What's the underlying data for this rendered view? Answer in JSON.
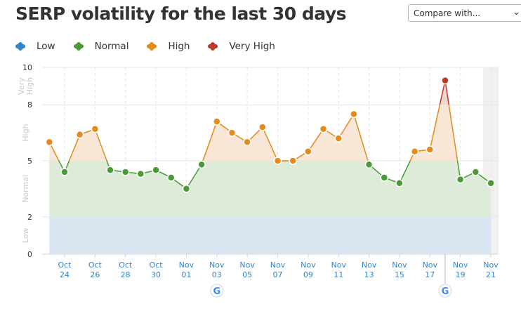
{
  "header": {
    "title": "SERP volatility for the last 30 days",
    "compare_label": "Compare with..."
  },
  "legend": [
    {
      "label": "Low",
      "color": "#2f86d0"
    },
    {
      "label": "Normal",
      "color": "#4a9a35"
    },
    {
      "label": "High",
      "color": "#e38b1b"
    },
    {
      "label": "Very High",
      "color": "#c0392b"
    }
  ],
  "chart_data": {
    "type": "line",
    "title": "SERP volatility for the last 30 days",
    "ylim": [
      0,
      10
    ],
    "yticks": [
      0,
      2,
      5,
      8,
      10
    ],
    "bands": [
      {
        "name": "Low",
        "from": 0,
        "to": 2,
        "fill": "#d9e5f1",
        "line": "#2f86d0"
      },
      {
        "name": "Normal",
        "from": 2,
        "to": 5,
        "fill": "#deebd9",
        "line": "#4a9a35"
      },
      {
        "name": "High",
        "from": 5,
        "to": 8,
        "fill": "#f8e6d6",
        "line": "#e38b1b"
      },
      {
        "name": "Very High",
        "from": 8,
        "to": 10,
        "fill": "#f1d5d1",
        "line": "#c0392b"
      }
    ],
    "band_labels": [
      {
        "label": "Low",
        "center": 1
      },
      {
        "label": "Normal",
        "center": 3.5
      },
      {
        "label": "High",
        "center": 6.5
      },
      {
        "label": "Very High",
        "center": 9
      }
    ],
    "x": [
      "Oct 23",
      "Oct 24",
      "Oct 25",
      "Oct 26",
      "Oct 27",
      "Oct 28",
      "Oct 29",
      "Oct 30",
      "Oct 31",
      "Nov 01",
      "Nov 02",
      "Nov 03",
      "Nov 04",
      "Nov 05",
      "Nov 06",
      "Nov 07",
      "Nov 08",
      "Nov 09",
      "Nov 10",
      "Nov 11",
      "Nov 12",
      "Nov 13",
      "Nov 14",
      "Nov 15",
      "Nov 16",
      "Nov 17",
      "Nov 18",
      "Nov 19",
      "Nov 20",
      "Nov 21"
    ],
    "values": [
      6.0,
      4.4,
      6.4,
      6.7,
      4.5,
      4.4,
      4.3,
      4.5,
      4.1,
      3.5,
      4.8,
      7.1,
      6.5,
      6.0,
      6.8,
      5.0,
      5.0,
      5.5,
      6.7,
      6.2,
      7.5,
      4.8,
      4.1,
      3.8,
      5.5,
      5.6,
      9.3,
      4.0,
      4.4,
      3.8
    ],
    "xtick_labels": [
      {
        "month": "Oct",
        "day": "24",
        "index": 1
      },
      {
        "month": "Oct",
        "day": "26",
        "index": 3
      },
      {
        "month": "Oct",
        "day": "28",
        "index": 5
      },
      {
        "month": "Oct",
        "day": "30",
        "index": 7
      },
      {
        "month": "Nov",
        "day": "01",
        "index": 9
      },
      {
        "month": "Nov",
        "day": "03",
        "index": 11
      },
      {
        "month": "Nov",
        "day": "05",
        "index": 13
      },
      {
        "month": "Nov",
        "day": "07",
        "index": 15
      },
      {
        "month": "Nov",
        "day": "09",
        "index": 17
      },
      {
        "month": "Nov",
        "day": "11",
        "index": 19
      },
      {
        "month": "Nov",
        "day": "13",
        "index": 21
      },
      {
        "month": "Nov",
        "day": "15",
        "index": 23
      },
      {
        "month": "Nov",
        "day": "17",
        "index": 25
      },
      {
        "month": "Nov",
        "day": "19",
        "index": 27
      },
      {
        "month": "Nov",
        "day": "21",
        "index": 29
      }
    ],
    "google_updates": [
      11,
      26
    ]
  }
}
